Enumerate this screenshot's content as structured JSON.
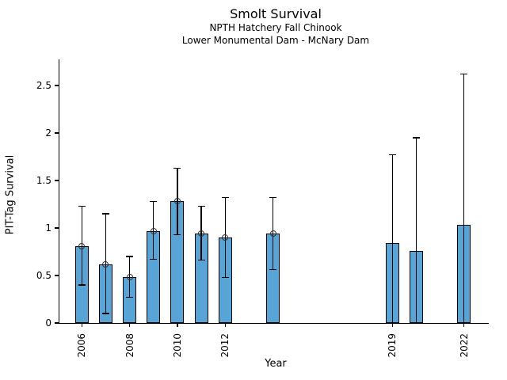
{
  "chart_data": {
    "type": "bar",
    "title": "Smolt Survival",
    "subtitle_line1": "NPTH Hatchery Fall Chinook",
    "subtitle_line2": "Lower Monumental Dam - McNary Dam",
    "xlabel": "Year",
    "ylabel": "PIT-Tag Survival",
    "xlim": [
      2005.1,
      2023.0
    ],
    "ylim": [
      0,
      2.78
    ],
    "yticks": [
      0,
      0.5,
      1,
      1.5,
      2,
      2.5
    ],
    "xticks": [
      2006,
      2008,
      2010,
      2012,
      2019,
      2022
    ],
    "grid": false,
    "legend": null,
    "bar_color": "#56a5d6",
    "bar_edge_color": "#000000",
    "error_color": "#000000",
    "bars": [
      {
        "year": 2006,
        "value": 0.81,
        "ci_low": 0.4,
        "ci_high": 1.23,
        "marker": true
      },
      {
        "year": 2007,
        "value": 0.62,
        "ci_low": 0.1,
        "ci_high": 1.15,
        "marker": true
      },
      {
        "year": 2008,
        "value": 0.48,
        "ci_low": 0.27,
        "ci_high": 0.7,
        "marker": true
      },
      {
        "year": 2009,
        "value": 0.97,
        "ci_low": 0.67,
        "ci_high": 1.28,
        "marker": true
      },
      {
        "year": 2010,
        "value": 1.28,
        "ci_low": 0.93,
        "ci_high": 1.63,
        "marker": true
      },
      {
        "year": 2011,
        "value": 0.94,
        "ci_low": 0.66,
        "ci_high": 1.23,
        "marker": true
      },
      {
        "year": 2012,
        "value": 0.9,
        "ci_low": 0.48,
        "ci_high": 1.32,
        "marker": true
      },
      {
        "year": 2014,
        "value": 0.94,
        "ci_low": 0.56,
        "ci_high": 1.32,
        "marker": true
      },
      {
        "year": 2019,
        "value": 0.84,
        "ci_low": 0.0,
        "ci_high": 1.77,
        "marker": false
      },
      {
        "year": 2020,
        "value": 0.76,
        "ci_low": 0.0,
        "ci_high": 1.95,
        "marker": false
      },
      {
        "year": 2022,
        "value": 1.03,
        "ci_low": 0.0,
        "ci_high": 2.62,
        "marker": false
      }
    ]
  }
}
